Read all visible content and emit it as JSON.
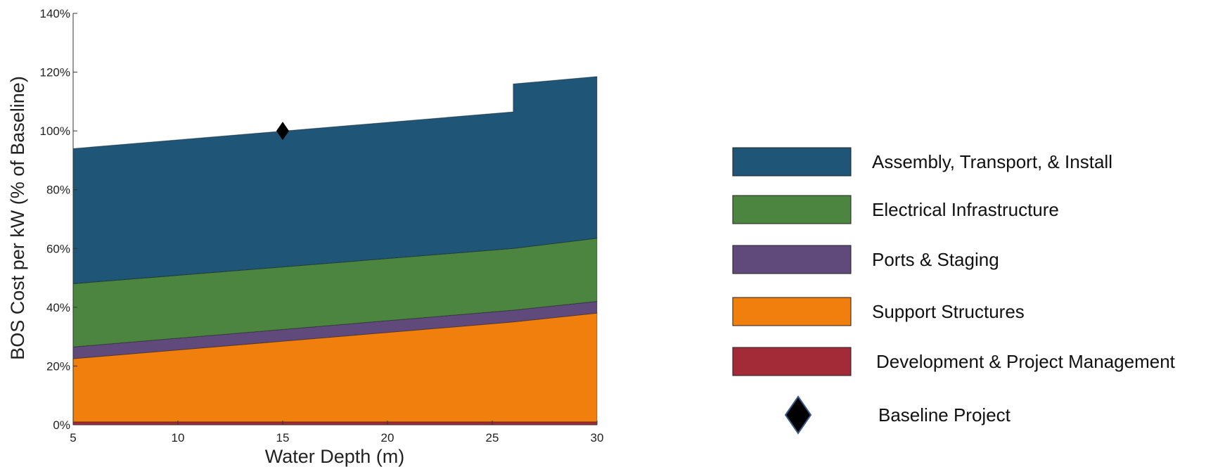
{
  "chart_data": {
    "type": "area",
    "title": "",
    "xlabel": "Water Depth (m)",
    "ylabel": "BOS Cost per kW (% of Baseline)",
    "xlim": [
      5,
      30
    ],
    "ylim": [
      0,
      140
    ],
    "x_ticks": [
      5,
      10,
      15,
      20,
      25,
      30
    ],
    "x_tick_labels": [
      "5",
      "10",
      "15",
      "20",
      "25",
      "30"
    ],
    "y_ticks": [
      0,
      20,
      40,
      60,
      80,
      100,
      120,
      140
    ],
    "y_tick_labels": [
      "0%",
      "20%",
      "40%",
      "60%",
      "80%",
      "100%",
      "120%",
      "140%"
    ],
    "grid": false,
    "legend_position": "right",
    "stacked": true,
    "x": [
      5,
      26,
      26,
      30
    ],
    "series": [
      {
        "name": "Development & Project Management",
        "color": "#A32A37",
        "values": [
          1,
          1,
          1,
          1
        ]
      },
      {
        "name": "Support Structures",
        "color": "#F07F0D",
        "values": [
          21.5,
          34,
          34,
          37
        ]
      },
      {
        "name": "Ports & Staging",
        "color": "#604A7B",
        "values": [
          4,
          4,
          4,
          4
        ]
      },
      {
        "name": "Electrical Infrastructure",
        "color": "#4C8540",
        "values": [
          21.5,
          21,
          21,
          21.5
        ]
      },
      {
        "name": "Assembly, Transport, & Install",
        "color": "#1F5577",
        "values": [
          46,
          46.5,
          56,
          55
        ]
      }
    ],
    "baseline_project": {
      "name": "Baseline Project",
      "x": 15,
      "y": 100,
      "color": "#000000"
    }
  }
}
